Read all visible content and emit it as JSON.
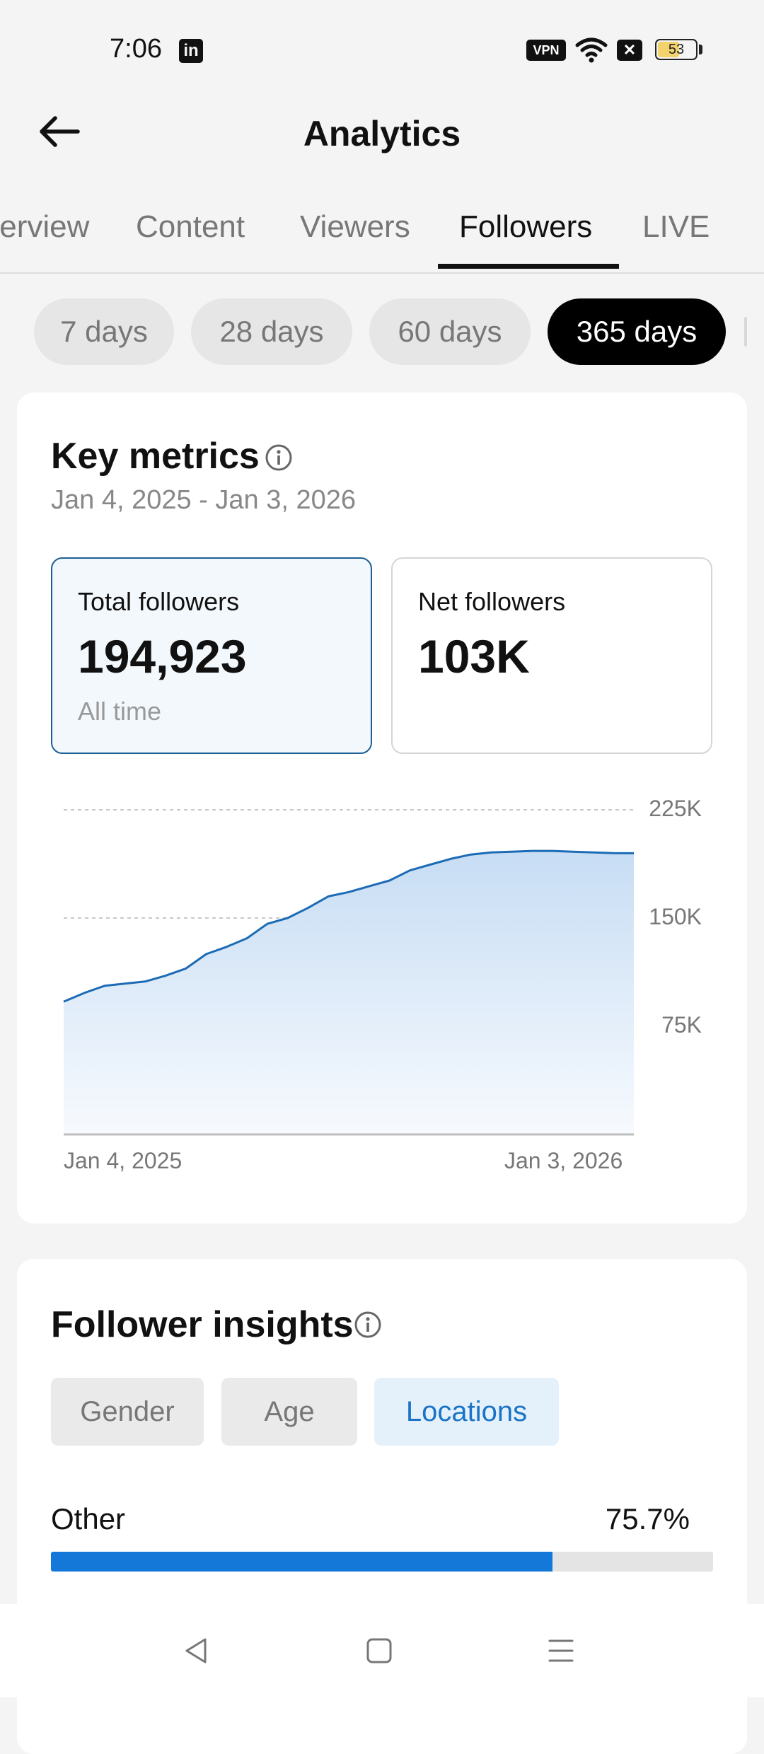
{
  "status_bar": {
    "time": "7:06",
    "linkedin_icon": "linkedin-icon",
    "vpn_label": "VPN",
    "battery_level": "53"
  },
  "header": {
    "title": "Analytics"
  },
  "tabs": [
    {
      "label": "Overview",
      "active": false
    },
    {
      "label": "Content",
      "active": false
    },
    {
      "label": "Viewers",
      "active": false
    },
    {
      "label": "Followers",
      "active": true
    },
    {
      "label": "LIVE",
      "active": false
    }
  ],
  "periods": [
    {
      "label": "7 days",
      "active": false
    },
    {
      "label": "28 days",
      "active": false
    },
    {
      "label": "60 days",
      "active": false
    },
    {
      "label": "365 days",
      "active": true
    }
  ],
  "key_metrics": {
    "title": "Key metrics",
    "date_range": "Jan 4, 2025 - Jan 3, 2026",
    "total_followers": {
      "label": "Total followers",
      "value": "194,923",
      "sub": "All time"
    },
    "net_followers": {
      "label": "Net followers",
      "value": "103K"
    }
  },
  "chart_data": {
    "type": "area",
    "x_start_label": "Jan 4, 2025",
    "x_end_label": "Jan 3, 2026",
    "y_ticks": [
      "225K",
      "150K",
      "75K"
    ],
    "ylim": [
      0,
      225000
    ],
    "grid": true,
    "color": "#1c6bb5",
    "values": [
      92000,
      98000,
      103000,
      104500,
      106000,
      110000,
      115000,
      125000,
      130000,
      136000,
      146000,
      150000,
      157000,
      165000,
      168000,
      172000,
      176000,
      183000,
      187000,
      191000,
      194000,
      195500,
      196000,
      196500,
      196500,
      196000,
      195500,
      195000,
      194923
    ]
  },
  "follower_insights": {
    "title": "Follower insights",
    "segments": [
      {
        "label": "Gender",
        "active": false
      },
      {
        "label": "Age",
        "active": false
      },
      {
        "label": "Locations",
        "active": true
      }
    ],
    "locations": [
      {
        "name": "Other",
        "percent_label": "75.7%",
        "percent": 75.7
      }
    ]
  },
  "colors": {
    "accent": "#1478d9",
    "selected_border": "#1c5f96",
    "background": "#f4f4f4"
  },
  "nav": {
    "back": "back-triangle-icon",
    "home": "home-square-icon",
    "menu": "menu-icon"
  }
}
